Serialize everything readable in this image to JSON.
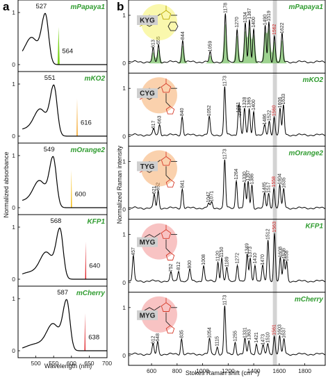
{
  "panel_labels": {
    "a": "a",
    "b": "b"
  },
  "chart_data": [
    {
      "type": "line",
      "panel": "a",
      "xlabel": "Wavelength (nm)",
      "ylabel": "Normalized  absorbance",
      "xlim": [
        450,
        700
      ],
      "xticks": [
        "500",
        "550",
        "600",
        "650",
        "700"
      ],
      "yticks": [
        "0",
        "1"
      ],
      "series": [
        {
          "name": "mPapaya1",
          "absorbance_peak": "527",
          "emission_line": "564",
          "peak_nm": 527,
          "line_nm": 564,
          "line_color": "#7ed321",
          "line_width_nm": 6
        },
        {
          "name": "mKO2",
          "absorbance_peak": "551",
          "emission_line": "616",
          "peak_nm": 551,
          "line_nm": 616,
          "line_color": "#f39c12",
          "line_width_nm": 3
        },
        {
          "name": "mOrange2",
          "absorbance_peak": "549",
          "emission_line": "600",
          "peak_nm": 549,
          "line_nm": 600,
          "line_color": "#f5b800",
          "line_width_nm": 3
        },
        {
          "name": "KFP1",
          "absorbance_peak": "568",
          "emission_line": "640",
          "peak_nm": 568,
          "line_nm": 640,
          "line_color": "#e0242a",
          "line_width_nm": 3
        },
        {
          "name": "mCherry",
          "absorbance_peak": "587",
          "emission_line": "638",
          "peak_nm": 587,
          "line_nm": 638,
          "line_color": "#e0242a",
          "line_width_nm": 3
        }
      ]
    },
    {
      "type": "line",
      "panel": "b",
      "xlabel": "Stokes Raman shift (cm⁻¹)",
      "ylabel": "Normalized Raman intensity",
      "xlim": [
        420,
        1960
      ],
      "xticks": [
        "600",
        "800",
        "1000",
        "1200",
        "1400",
        "1600",
        "1800"
      ],
      "yticks": [
        "0",
        "1"
      ],
      "highlight_band": [
        1550,
        1582
      ],
      "series": [
        {
          "name": "mPapaya1",
          "chromophore": "KYG",
          "chip_glow": "#f4ef4a",
          "peaks": [
            [
              613,
              0.28,
              "613"
            ],
            [
              655,
              0.35,
              "655"
            ],
            [
              844,
              0.45,
              "844"
            ],
            [
              1059,
              0.2,
              "1059"
            ],
            [
              1178,
              1.0,
              "1178"
            ],
            [
              1270,
              0.7,
              "1270"
            ],
            [
              1334,
              0.8,
              "1334"
            ],
            [
              1367,
              0.88,
              "1367"
            ],
            [
              1400,
              0.7,
              "1400"
            ],
            [
              1490,
              0.75,
              "1490"
            ],
            [
              1519,
              0.83,
              "1519"
            ],
            [
              1562,
              0.55,
              "1562"
            ],
            [
              1622,
              0.58,
              "1622"
            ]
          ],
          "red_peak": "1562"
        },
        {
          "name": "mKO2",
          "chromophore": "CYG",
          "chip_glow": "#f39a4a",
          "peaks": [
            [
              617,
              0.12,
              "617"
            ],
            [
              663,
              0.22,
              "663"
            ],
            [
              840,
              0.38,
              "840"
            ],
            [
              1052,
              0.38,
              "1052"
            ],
            [
              1173,
              1.0,
              "1173"
            ],
            [
              1281,
              0.45,
              "1281"
            ],
            [
              1291,
              0.38,
              "1291"
            ],
            [
              1328,
              0.55,
              "1328"
            ],
            [
              1365,
              0.55,
              "1365"
            ],
            [
              1400,
              0.5,
              "1400"
            ],
            [
              1486,
              0.2,
              "1486"
            ],
            [
              1522,
              0.28,
              "1522"
            ],
            [
              1560,
              0.38,
              "1560"
            ],
            [
              1606,
              0.55,
              "1606"
            ],
            [
              1633,
              0.62,
              "1633"
            ]
          ],
          "red_peak": "1560"
        },
        {
          "name": "mOrange2",
          "chromophore": "TYG",
          "chip_glow": "#f39a4a",
          "peaks": [
            [
              621,
              0.28,
              "621"
            ],
            [
              652,
              0.35,
              "652"
            ],
            [
              841,
              0.4,
              "841"
            ],
            [
              1047,
              0.1,
              "1047"
            ],
            [
              1071,
              0.12,
              "1071"
            ],
            [
              1173,
              1.0,
              "1173"
            ],
            [
              1264,
              0.58,
              "1264"
            ],
            [
              1330,
              0.52,
              "1330"
            ],
            [
              1357,
              0.55,
              "1357"
            ],
            [
              1386,
              0.48,
              "1386"
            ],
            [
              1485,
              0.3,
              "1485"
            ],
            [
              1517,
              0.3,
              "1517"
            ],
            [
              1558,
              0.42,
              "1558"
            ],
            [
              1604,
              0.48,
              "1604"
            ],
            [
              1635,
              0.4,
              "1635"
            ]
          ],
          "red_peak": "1558"
        },
        {
          "name": "KFP1",
          "chromophore": "MYG",
          "chip_glow": "#f0797a",
          "peaks": [
            [
              457,
              0.52,
              "457"
            ],
            [
              752,
              0.18,
              "752"
            ],
            [
              812,
              0.22,
              "812"
            ],
            [
              900,
              0.25,
              "900"
            ],
            [
              1008,
              0.32,
              "1008"
            ],
            [
              1120,
              0.4,
              "1120"
            ],
            [
              1150,
              0.48,
              "1150"
            ],
            [
              1189,
              0.28,
              "1189"
            ],
            [
              1272,
              0.35,
              "1272"
            ],
            [
              1349,
              0.55,
              "1349"
            ],
            [
              1373,
              0.48,
              "1373"
            ],
            [
              1410,
              0.35,
              "1410"
            ],
            [
              1470,
              0.32,
              "1470"
            ],
            [
              1512,
              0.85,
              "1512"
            ],
            [
              1563,
              1.0,
              "1563"
            ],
            [
              1608,
              0.48,
              "1608"
            ],
            [
              1636,
              0.45,
              "1636"
            ],
            [
              1658,
              0.4,
              "1658"
            ]
          ],
          "red_peak": "1563"
        },
        {
          "name": "mCherry",
          "chromophore": "MYG",
          "chip_glow": "#f0797a",
          "peaks": [
            [
              612,
              0.2,
              "612"
            ],
            [
              648,
              0.25,
              "648"
            ],
            [
              835,
              0.32,
              "835"
            ],
            [
              1054,
              0.32,
              "1054"
            ],
            [
              1115,
              0.15,
              "1115"
            ],
            [
              1173,
              1.0,
              "1173"
            ],
            [
              1255,
              0.25,
              "1255"
            ],
            [
              1331,
              0.32,
              "1331"
            ],
            [
              1363,
              0.28,
              "1363"
            ],
            [
              1421,
              0.22,
              "1421"
            ],
            [
              1473,
              0.18,
              "1473"
            ],
            [
              1510,
              0.22,
              "1510"
            ],
            [
              1561,
              0.38,
              "1561"
            ],
            [
              1603,
              0.38,
              "1603"
            ],
            [
              1637,
              0.32,
              "1637"
            ]
          ],
          "red_peak": "1561"
        }
      ]
    }
  ]
}
